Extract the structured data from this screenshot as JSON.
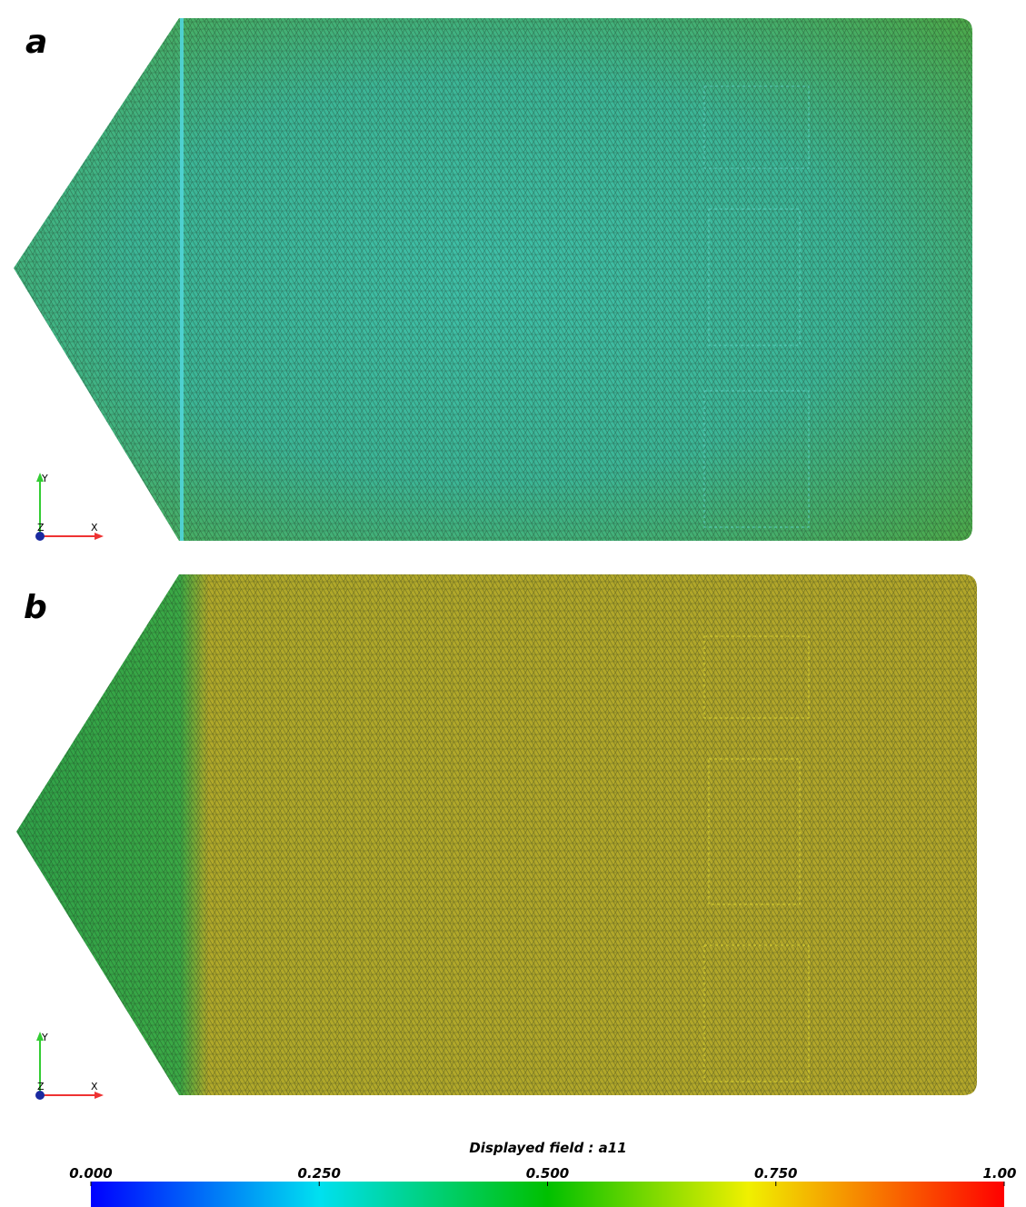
{
  "panels": [
    {
      "label": "a",
      "axes": {
        "x": "X",
        "y": "Y",
        "z": "Z"
      }
    },
    {
      "label": "b",
      "axes": {
        "x": "X",
        "y": "Y",
        "z": "Z"
      }
    }
  ],
  "colorbar": {
    "title": "Displayed field : a11",
    "range": [
      0,
      1
    ],
    "ticks": [
      {
        "value": 0,
        "label": "0.000"
      },
      {
        "value": 0.25,
        "label": "0.250"
      },
      {
        "value": 0.5,
        "label": "0.500"
      },
      {
        "value": 0.75,
        "label": "0.750"
      },
      {
        "value": 1,
        "label": "1.00"
      }
    ]
  }
}
